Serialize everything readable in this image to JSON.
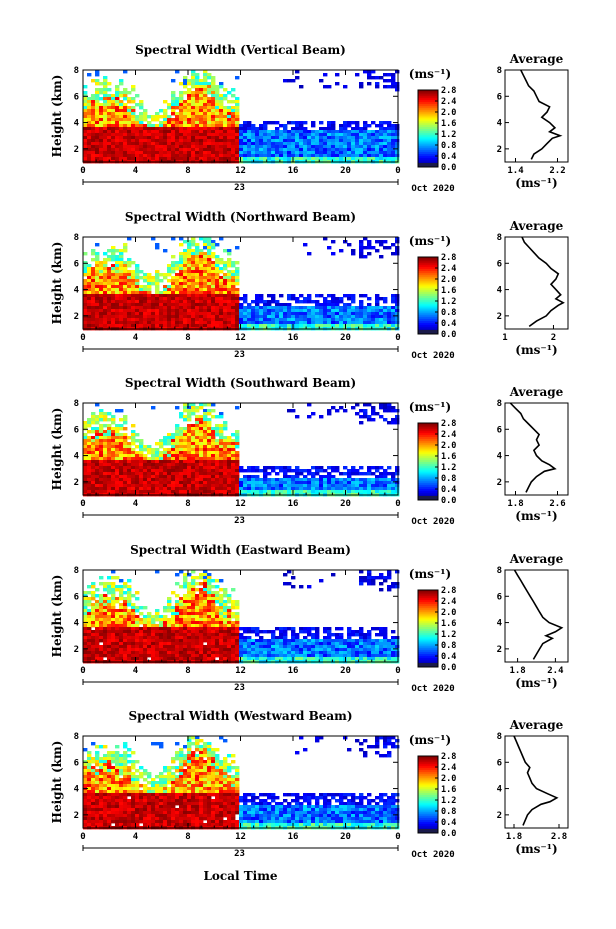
{
  "figure": {
    "global_xlabel": "Local Time",
    "month_label": "Oct 2020",
    "day_label": "23",
    "colorbar_unit": "(ms⁻¹)",
    "average_title": "Average",
    "average_unit": "(ms⁻¹)",
    "ylabel": "Height (km)"
  },
  "chart_data": [
    {
      "type": "heatmap",
      "title": "Spectral Width (Vertical Beam)",
      "ylabel": "Height (km)",
      "x_ticks": [
        "0",
        "4",
        "8",
        "12",
        "16",
        "20",
        "0"
      ],
      "xlim": [
        0,
        24
      ],
      "ylim": [
        1,
        8
      ],
      "y_ticks": [
        "2",
        "4",
        "6",
        "8"
      ],
      "colorbar_ticks": [
        "2.8",
        "2.4",
        "2.0",
        "1.6",
        "1.2",
        "0.8",
        "0.4",
        "0.0"
      ],
      "colorbar_range": [
        0.0,
        2.8
      ],
      "average_profile": {
        "xlabel": "(ms⁻¹)",
        "x_ticks": [
          "1.4",
          "2.2"
        ],
        "xlim": [
          1.2,
          2.4
        ],
        "heights": [
          1.2,
          1.6,
          2.0,
          2.4,
          2.8,
          3.0,
          3.3,
          3.6,
          4.0,
          4.4,
          4.8,
          5.2,
          5.6,
          6.0,
          6.4,
          6.8,
          7.2,
          7.6,
          8.0
        ],
        "values": [
          1.7,
          1.75,
          1.9,
          2.0,
          2.1,
          2.25,
          2.05,
          2.15,
          2.05,
          1.9,
          2.0,
          2.05,
          1.85,
          1.8,
          1.75,
          1.65,
          1.6,
          1.55,
          1.5
        ]
      }
    },
    {
      "type": "heatmap",
      "title": "Spectral Width (Northward Beam)",
      "ylabel": "Height (km)",
      "x_ticks": [
        "0",
        "4",
        "8",
        "12",
        "16",
        "20",
        "0"
      ],
      "xlim": [
        0,
        24
      ],
      "ylim": [
        1,
        8
      ],
      "y_ticks": [
        "2",
        "4",
        "6",
        "8"
      ],
      "colorbar_ticks": [
        "2.8",
        "2.4",
        "2.0",
        "1.6",
        "1.2",
        "0.8",
        "0.4",
        "0.0"
      ],
      "colorbar_range": [
        0.0,
        2.8
      ],
      "average_profile": {
        "xlabel": "(ms⁻¹)",
        "x_ticks": [
          "1",
          "2"
        ],
        "xlim": [
          1.0,
          2.3
        ],
        "heights": [
          1.2,
          1.6,
          2.0,
          2.4,
          2.8,
          3.0,
          3.3,
          3.6,
          4.0,
          4.4,
          4.8,
          5.2,
          5.6,
          6.0,
          6.4,
          6.8,
          7.2,
          7.6,
          8.0
        ],
        "values": [
          1.5,
          1.65,
          1.85,
          1.95,
          2.1,
          2.2,
          2.05,
          2.15,
          2.05,
          1.95,
          2.05,
          2.1,
          1.95,
          1.85,
          1.7,
          1.6,
          1.5,
          1.4,
          1.35
        ]
      }
    },
    {
      "type": "heatmap",
      "title": "Spectral Width (Southward Beam)",
      "ylabel": "Height (km)",
      "x_ticks": [
        "0",
        "4",
        "8",
        "12",
        "16",
        "20",
        "0"
      ],
      "xlim": [
        0,
        24
      ],
      "ylim": [
        1,
        8
      ],
      "y_ticks": [
        "2",
        "4",
        "6",
        "8"
      ],
      "colorbar_ticks": [
        "2.8",
        "2.4",
        "2.0",
        "1.6",
        "1.2",
        "0.8",
        "0.4",
        "0.0"
      ],
      "colorbar_range": [
        0.0,
        2.8
      ],
      "average_profile": {
        "xlabel": "(ms⁻¹)",
        "x_ticks": [
          "1.8",
          "2.6"
        ],
        "xlim": [
          1.6,
          2.8
        ],
        "heights": [
          1.2,
          1.6,
          2.0,
          2.4,
          2.8,
          3.0,
          3.3,
          3.6,
          4.0,
          4.4,
          4.8,
          5.2,
          5.6,
          6.0,
          6.4,
          6.8,
          7.2,
          7.6,
          8.0
        ],
        "values": [
          2.0,
          2.05,
          2.1,
          2.2,
          2.35,
          2.55,
          2.45,
          2.3,
          2.2,
          2.15,
          2.25,
          2.2,
          2.25,
          2.15,
          2.05,
          1.95,
          1.9,
          1.8,
          1.7
        ]
      }
    },
    {
      "type": "heatmap",
      "title": "Spectral Width (Eastward Beam)",
      "ylabel": "Height (km)",
      "x_ticks": [
        "0",
        "4",
        "8",
        "12",
        "16",
        "20",
        "0"
      ],
      "xlim": [
        0,
        24
      ],
      "ylim": [
        1,
        8
      ],
      "y_ticks": [
        "2",
        "4",
        "6",
        "8"
      ],
      "colorbar_ticks": [
        "2.8",
        "2.4",
        "2.0",
        "1.6",
        "1.2",
        "0.8",
        "0.4",
        "0.0"
      ],
      "colorbar_range": [
        0.0,
        2.8
      ],
      "average_profile": {
        "xlabel": "(ms⁻¹)",
        "x_ticks": [
          "1.8",
          "2.4"
        ],
        "xlim": [
          1.6,
          2.6
        ],
        "heights": [
          1.2,
          1.6,
          2.0,
          2.4,
          2.8,
          3.0,
          3.3,
          3.6,
          4.0,
          4.4,
          4.8,
          5.2,
          5.6,
          6.0,
          6.4,
          6.8,
          7.2,
          7.6,
          8.0
        ],
        "values": [
          2.05,
          2.1,
          2.15,
          2.2,
          2.35,
          2.25,
          2.4,
          2.5,
          2.3,
          2.2,
          2.15,
          2.1,
          2.05,
          2.0,
          1.95,
          1.9,
          1.85,
          1.8,
          1.75
        ]
      }
    },
    {
      "type": "heatmap",
      "title": "Spectral Width (Westward Beam)",
      "ylabel": "Height (km)",
      "x_ticks": [
        "0",
        "4",
        "8",
        "12",
        "16",
        "20",
        "0"
      ],
      "xlim": [
        0,
        24
      ],
      "ylim": [
        1,
        8
      ],
      "y_ticks": [
        "2",
        "4",
        "6",
        "8"
      ],
      "colorbar_ticks": [
        "2.8",
        "2.4",
        "2.0",
        "1.6",
        "1.2",
        "0.8",
        "0.4",
        "0.0"
      ],
      "colorbar_range": [
        0.0,
        2.8
      ],
      "average_profile": {
        "xlabel": "(ms⁻¹)",
        "x_ticks": [
          "1.8",
          "2.8"
        ],
        "xlim": [
          1.6,
          3.0
        ],
        "heights": [
          1.2,
          1.6,
          2.0,
          2.4,
          2.8,
          3.0,
          3.3,
          3.6,
          4.0,
          4.4,
          4.8,
          5.2,
          5.6,
          6.0,
          6.4,
          6.8,
          7.2,
          7.6,
          8.0
        ],
        "values": [
          2.0,
          2.05,
          2.1,
          2.2,
          2.4,
          2.6,
          2.75,
          2.55,
          2.3,
          2.2,
          2.15,
          2.1,
          2.15,
          2.05,
          2.0,
          1.95,
          1.9,
          1.85,
          1.8
        ]
      }
    }
  ]
}
